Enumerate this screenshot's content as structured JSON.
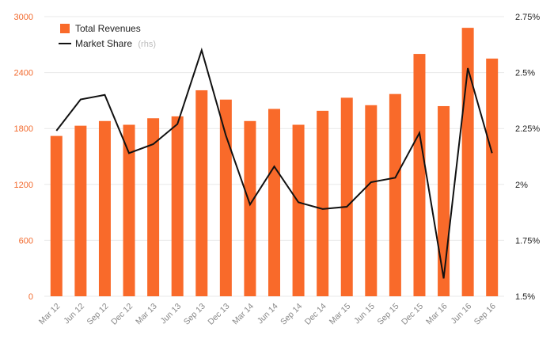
{
  "chart_data": {
    "type": "bar",
    "categories": [
      "Mar 12",
      "Jun 12",
      "Sep 12",
      "Dec 12",
      "Mar 13",
      "Jun 13",
      "Sep 13",
      "Dec 13",
      "Mar 14",
      "Jun 14",
      "Sep 14",
      "Dec 14",
      "Mar 15",
      "Jun 15",
      "Sep 15",
      "Dec 15",
      "Mar 16",
      "Jun 16",
      "Sep 16"
    ],
    "series": [
      {
        "name": "Total Revenues",
        "type": "bar",
        "axis": "left",
        "color": "#f96a2a",
        "values": [
          1720,
          1830,
          1880,
          1840,
          1910,
          1930,
          2210,
          2110,
          1880,
          2010,
          1840,
          1990,
          2130,
          2050,
          2170,
          2600,
          2040,
          2880,
          2550
        ]
      },
      {
        "name": "Market Share",
        "suffix": "(rhs)",
        "type": "line",
        "axis": "right",
        "color": "#111111",
        "values": [
          2.24,
          2.38,
          2.4,
          2.14,
          2.18,
          2.27,
          2.6,
          2.22,
          1.91,
          2.08,
          1.92,
          1.89,
          1.9,
          2.01,
          2.03,
          2.23,
          1.58,
          2.52,
          2.14
        ]
      }
    ],
    "y_left": {
      "lim": [
        0,
        3000
      ],
      "ticks": [
        0,
        600,
        1200,
        1800,
        2400,
        3000
      ],
      "tick_labels": [
        "0",
        "600",
        "1200",
        "1800",
        "2400",
        "3000"
      ]
    },
    "y_right": {
      "lim": [
        1.5,
        2.75
      ],
      "ticks": [
        1.5,
        1.75,
        2.0,
        2.25,
        2.5,
        2.75
      ],
      "tick_labels": [
        "1.5%",
        "1.75%",
        "2%",
        "2.25%",
        "2.5%",
        "2.75%"
      ]
    },
    "title": "",
    "xlabel": "",
    "ylabel": "",
    "grid": true,
    "legend_position": "top-left"
  }
}
